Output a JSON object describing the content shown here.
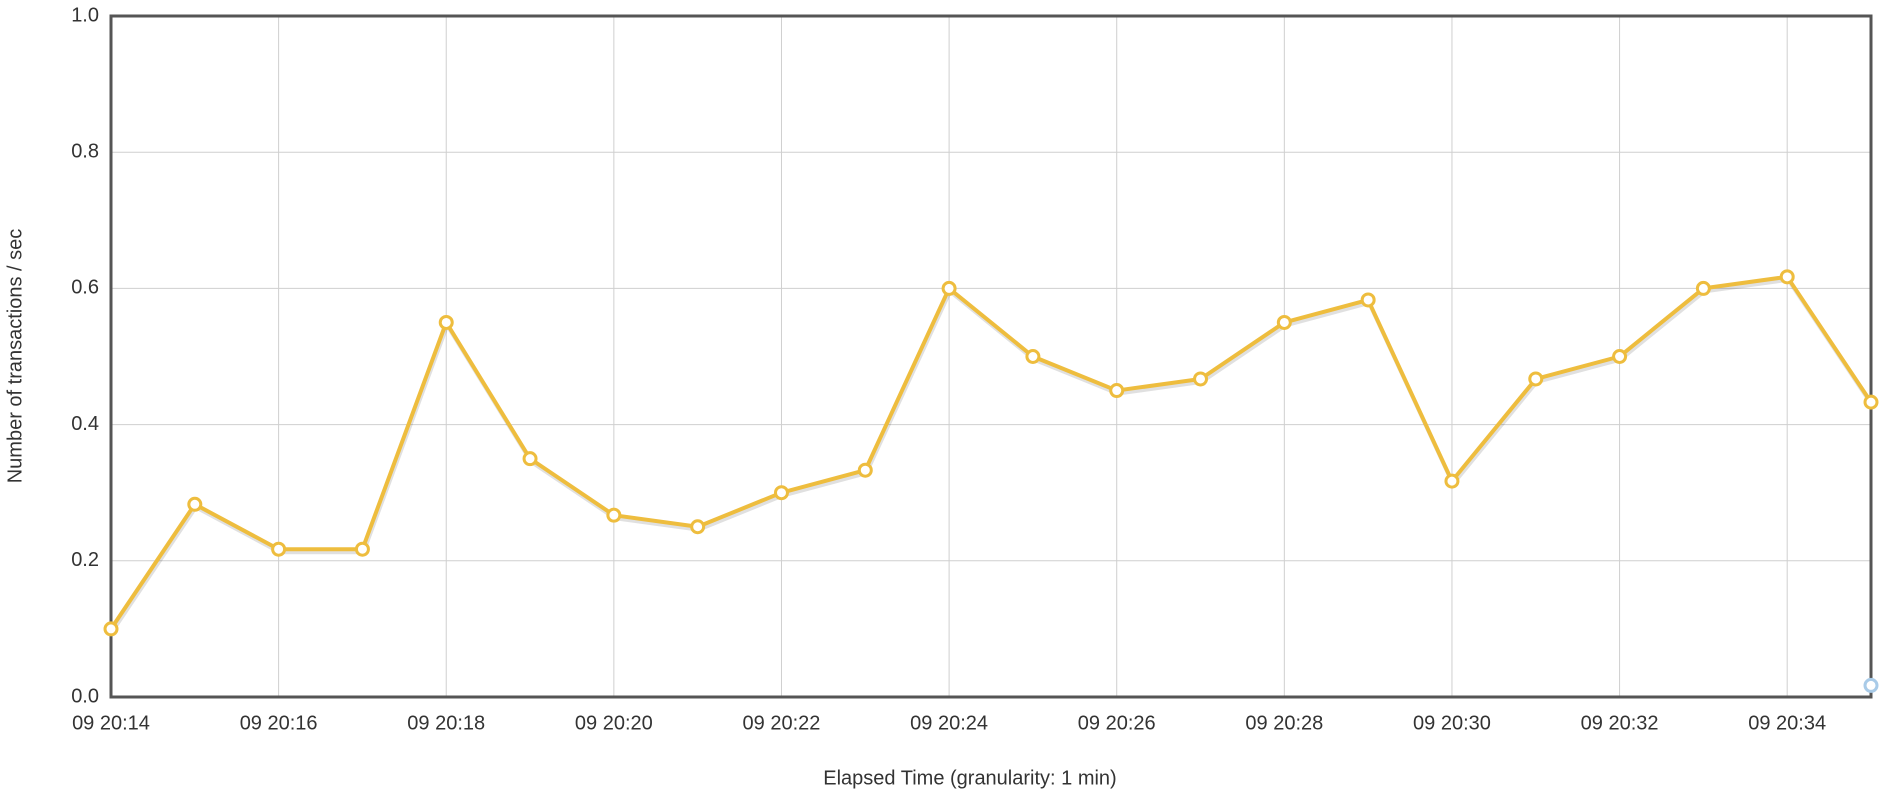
{
  "chart_data": {
    "type": "line",
    "x_label": "Elapsed Time (granularity: 1 min)",
    "y_label": "Number of transactions / sec",
    "categories": [
      "09 20:14",
      null,
      "09 20:16",
      null,
      "09 20:18",
      null,
      "09 20:20",
      null,
      "09 20:22",
      null,
      "09 20:24",
      null,
      "09 20:26",
      null,
      "09 20:28",
      null,
      "09 20:30",
      null,
      "09 20:32",
      null,
      "09 20:34",
      null
    ],
    "series": [
      {
        "color": "#eebd3e",
        "values": [
          0.1,
          0.283,
          0.217,
          0.217,
          0.55,
          0.35,
          0.267,
          0.25,
          0.3,
          0.333,
          0.6,
          0.5,
          0.45,
          0.467,
          0.55,
          0.583,
          0.317,
          0.467,
          0.5,
          0.6,
          0.617,
          0.433
        ]
      },
      {
        "color": "#a9cbe8",
        "values": [
          null,
          null,
          null,
          null,
          null,
          null,
          null,
          null,
          null,
          null,
          null,
          null,
          null,
          null,
          null,
          null,
          null,
          null,
          null,
          null,
          null,
          0.017
        ]
      }
    ],
    "ylim": [
      0,
      1
    ],
    "yticks": [
      {
        "value": 0,
        "label": "0.0"
      },
      0.2,
      0.4,
      0.6,
      0.8,
      {
        "value": 1,
        "label": "1.0"
      }
    ],
    "grid": true
  }
}
